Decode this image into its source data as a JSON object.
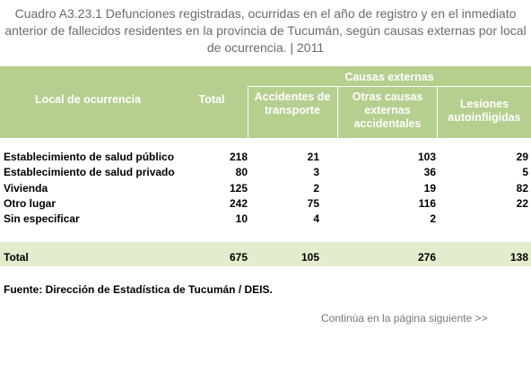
{
  "title": "Cuadro A3.23.1 Defunciones registradas, ocurridas en el año de registro y en el inmediato anterior de fallecidos residentes en la provincia de Tucumán, según causas externas por local de ocurrencia. | 2011",
  "header": {
    "local": "Local de ocurrencia",
    "total": "Total",
    "group": "Causas externas",
    "accidentes": "Accidentes de transporte",
    "otras": "Otras causas externas accidentales",
    "lesiones": "Lesiones autoinfligidas"
  },
  "rows": [
    {
      "label": "Establecimiento de salud público",
      "total": "218",
      "accidentes": "21",
      "otras": "103",
      "lesiones": "29"
    },
    {
      "label": "Establecimiento de salud privado",
      "total": "80",
      "accidentes": "3",
      "otras": "36",
      "lesiones": "5"
    },
    {
      "label": "Vivienda",
      "total": "125",
      "accidentes": "2",
      "otras": "19",
      "lesiones": "82"
    },
    {
      "label": "Otro lugar",
      "total": "242",
      "accidentes": "75",
      "otras": "116",
      "lesiones": "22"
    },
    {
      "label": "Sin especificar",
      "total": "10",
      "accidentes": "4",
      "otras": "2",
      "lesiones": ""
    }
  ],
  "totals": {
    "label": "Total",
    "total": "675",
    "accidentes": "105",
    "otras": "276",
    "lesiones": "138"
  },
  "source": "Fuente: Dirección de Estadística de Tucumán / DEIS.",
  "continue_link": "Continúa en la página siguiente >>",
  "colors": {
    "header_bg": "#b5cf8e",
    "total_bg": "#e3edce",
    "title": "#6b6b6b"
  }
}
